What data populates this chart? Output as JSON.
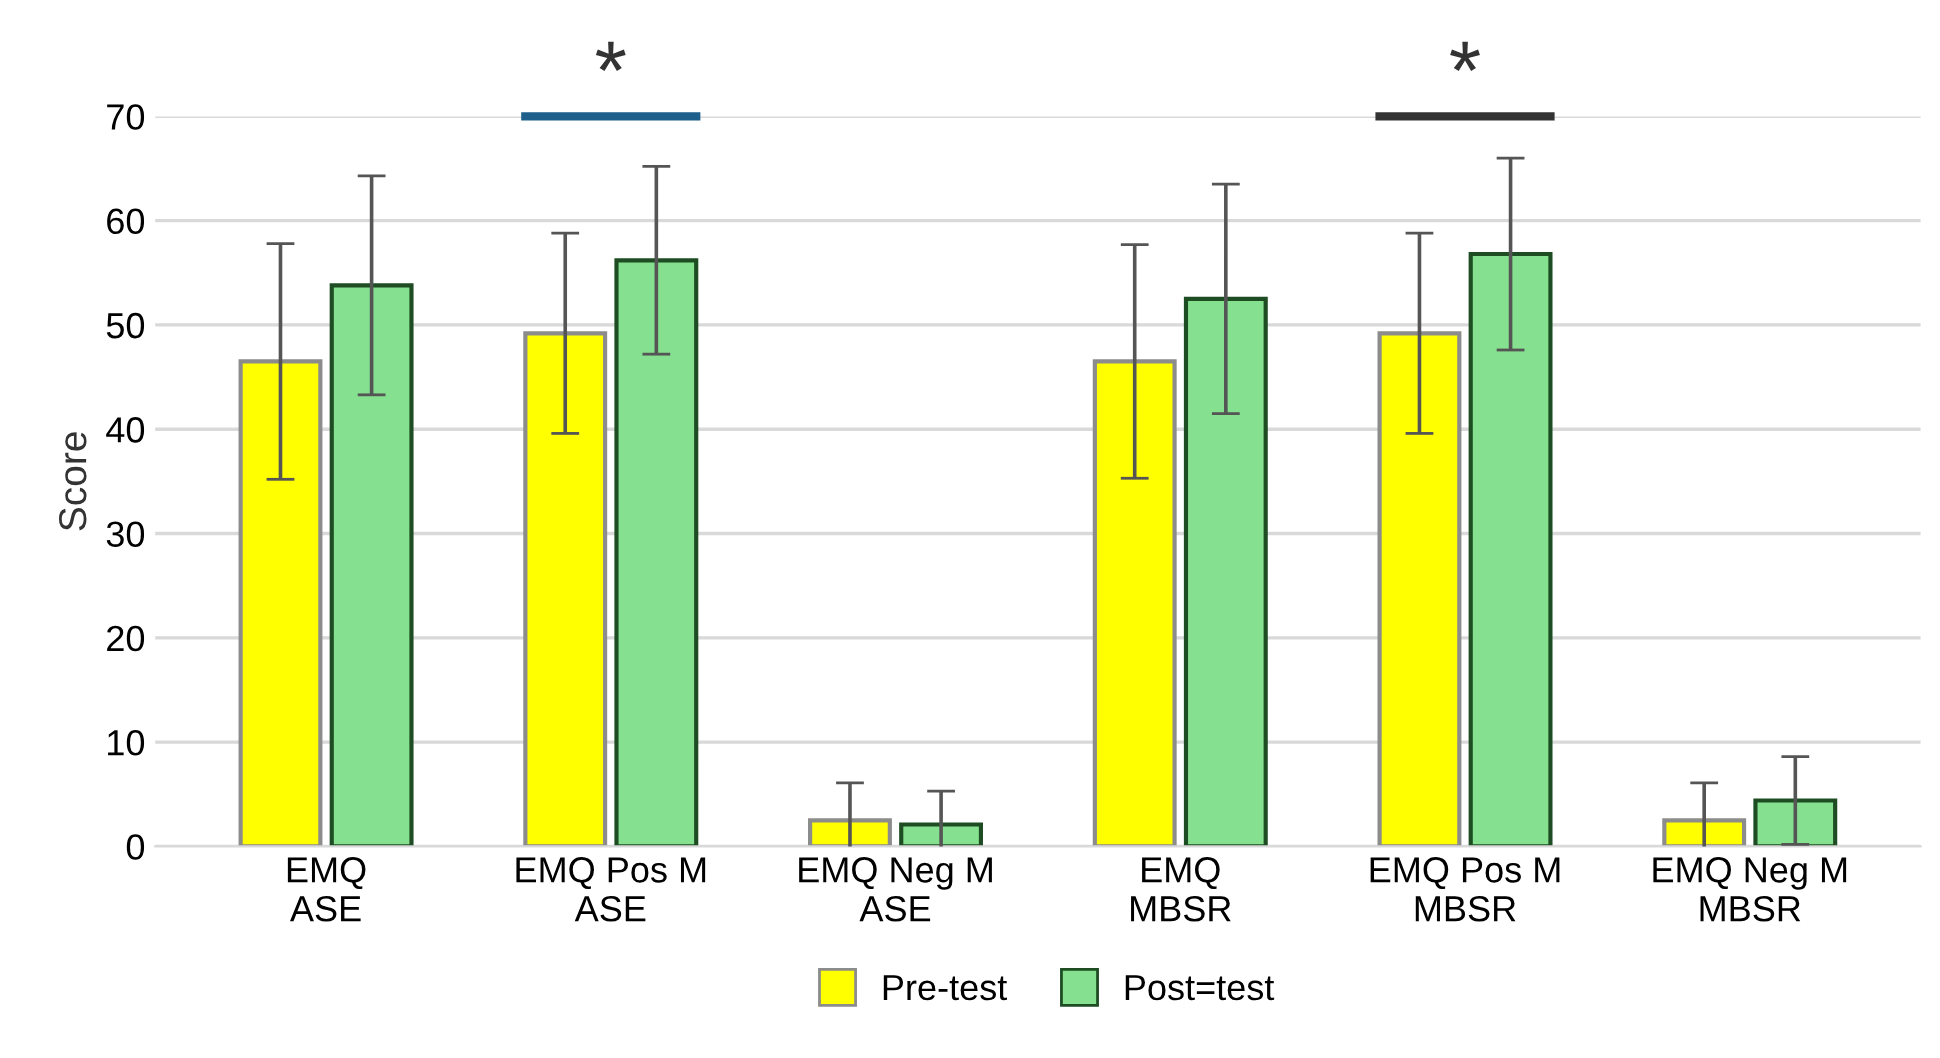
{
  "chart_data": {
    "type": "bar",
    "ylabel": "Score",
    "categories": [
      "EMQ\nASE",
      "EMQ Pos M\nASE",
      "EMQ Neg M\nASE",
      "EMQ\nMBSR",
      "EMQ Pos M\nMBSR",
      "EMQ Neg M\nMBSR"
    ],
    "series": [
      {
        "name": "Pre-test",
        "color": "#ffff00",
        "values": [
          46.5,
          49.2,
          2.5,
          46.5,
          49.2,
          2.5
        ],
        "errors": [
          11.3,
          9.6,
          3.6,
          11.2,
          9.6,
          3.6
        ]
      },
      {
        "name": "Post=test",
        "color": "#85e08f",
        "values": [
          53.8,
          56.2,
          2.1,
          52.5,
          56.8,
          4.4
        ],
        "errors": [
          10.5,
          9,
          3.2,
          11,
          9.2,
          4.2
        ]
      }
    ],
    "ylim": [
      0,
      70
    ],
    "yticks": [
      0,
      10,
      20,
      30,
      40,
      50,
      60,
      70
    ],
    "grid": "y",
    "legend": "bottom",
    "annotations": [
      "*",
      "*"
    ]
  }
}
